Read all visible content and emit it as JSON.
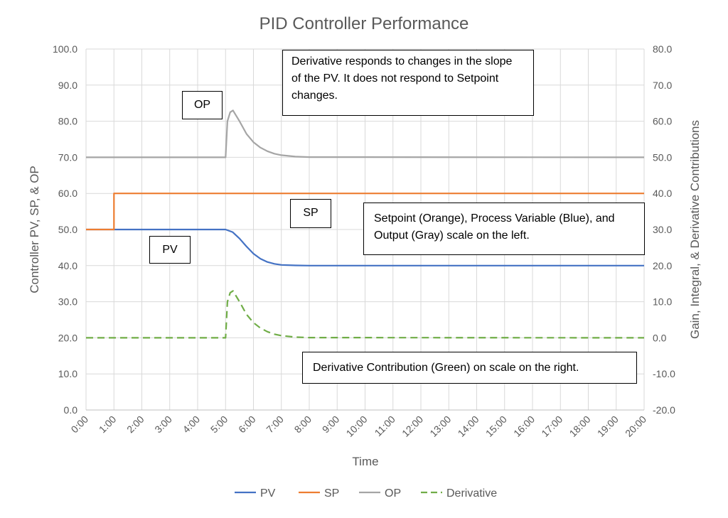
{
  "chart_data": {
    "type": "line",
    "title": "PID Controller Performance",
    "xlabel": "Time",
    "ylabel": "Controller PV, SP, & OP",
    "y2label": "Gain, Integral, & Derivative Contributions",
    "xlim": [
      "0:00",
      "20:00"
    ],
    "ylim": [
      0,
      100
    ],
    "y2lim": [
      -20,
      80
    ],
    "grid": true,
    "legend_position": "bottom",
    "x_ticks": [
      "0:00",
      "1:00",
      "2:00",
      "3:00",
      "4:00",
      "5:00",
      "6:00",
      "7:00",
      "8:00",
      "9:00",
      "10:00",
      "11:00",
      "12:00",
      "13:00",
      "14:00",
      "15:00",
      "16:00",
      "17:00",
      "18:00",
      "19:00",
      "20:00"
    ],
    "y_ticks": [
      "0.0",
      "10.0",
      "20.0",
      "30.0",
      "40.0",
      "50.0",
      "60.0",
      "70.0",
      "80.0",
      "90.0",
      "100.0"
    ],
    "y2_ticks": [
      "-20.0",
      "-10.0",
      "0.0",
      "10.0",
      "20.0",
      "30.0",
      "40.0",
      "50.0",
      "60.0",
      "70.0",
      "80.0"
    ],
    "series": [
      {
        "name": "PV",
        "axis": "left",
        "color": "#4472c4",
        "dash": false,
        "x": [
          "0:00",
          "5:00",
          "5:15",
          "5:30",
          "5:45",
          "6:00",
          "6:15",
          "6:30",
          "6:45",
          "7:00",
          "7:30",
          "8:00",
          "20:00"
        ],
        "y": [
          50,
          50,
          49.3,
          47.5,
          45.3,
          43.3,
          41.9,
          41.0,
          40.5,
          40.2,
          40.05,
          40,
          40
        ]
      },
      {
        "name": "SP",
        "axis": "left",
        "color": "#ed7d31",
        "dash": false,
        "x": [
          "0:00",
          "1:00",
          "1:00",
          "20:00"
        ],
        "y": [
          50,
          50,
          60,
          60
        ]
      },
      {
        "name": "OP",
        "axis": "left",
        "color": "#a5a5a5",
        "dash": false,
        "x": [
          "0:00",
          "5:00",
          "5:04",
          "5:10",
          "5:16",
          "5:30",
          "5:45",
          "6:00",
          "6:15",
          "6:30",
          "6:45",
          "7:00",
          "7:30",
          "8:00",
          "20:00"
        ],
        "y": [
          70,
          70,
          80,
          82.5,
          83,
          80,
          76.5,
          74.2,
          72.7,
          71.7,
          71.0,
          70.6,
          70.2,
          70.05,
          70
        ]
      },
      {
        "name": "Derivative",
        "axis": "right",
        "color": "#70ad47",
        "dash": true,
        "x": [
          "0:00",
          "5:00",
          "5:04",
          "5:10",
          "5:16",
          "5:30",
          "5:45",
          "6:00",
          "6:15",
          "6:30",
          "6:45",
          "7:00",
          "7:30",
          "8:00",
          "20:00"
        ],
        "y": [
          0,
          0,
          10,
          12.5,
          13,
          10,
          6.5,
          4.2,
          2.7,
          1.7,
          1.0,
          0.6,
          0.2,
          0.05,
          0
        ]
      }
    ],
    "annotations": {
      "op": "OP",
      "sp": "SP",
      "pv": "PV",
      "derivative_note": "Derivative responds to changes in the slope of the PV.  It does not respond to Setpoint changes.",
      "scale_note": "Setpoint (Orange), Process Variable (Blue), and Output (Gray) scale on the left.",
      "green_note": "Derivative Contribution (Green) on scale on the right."
    }
  }
}
